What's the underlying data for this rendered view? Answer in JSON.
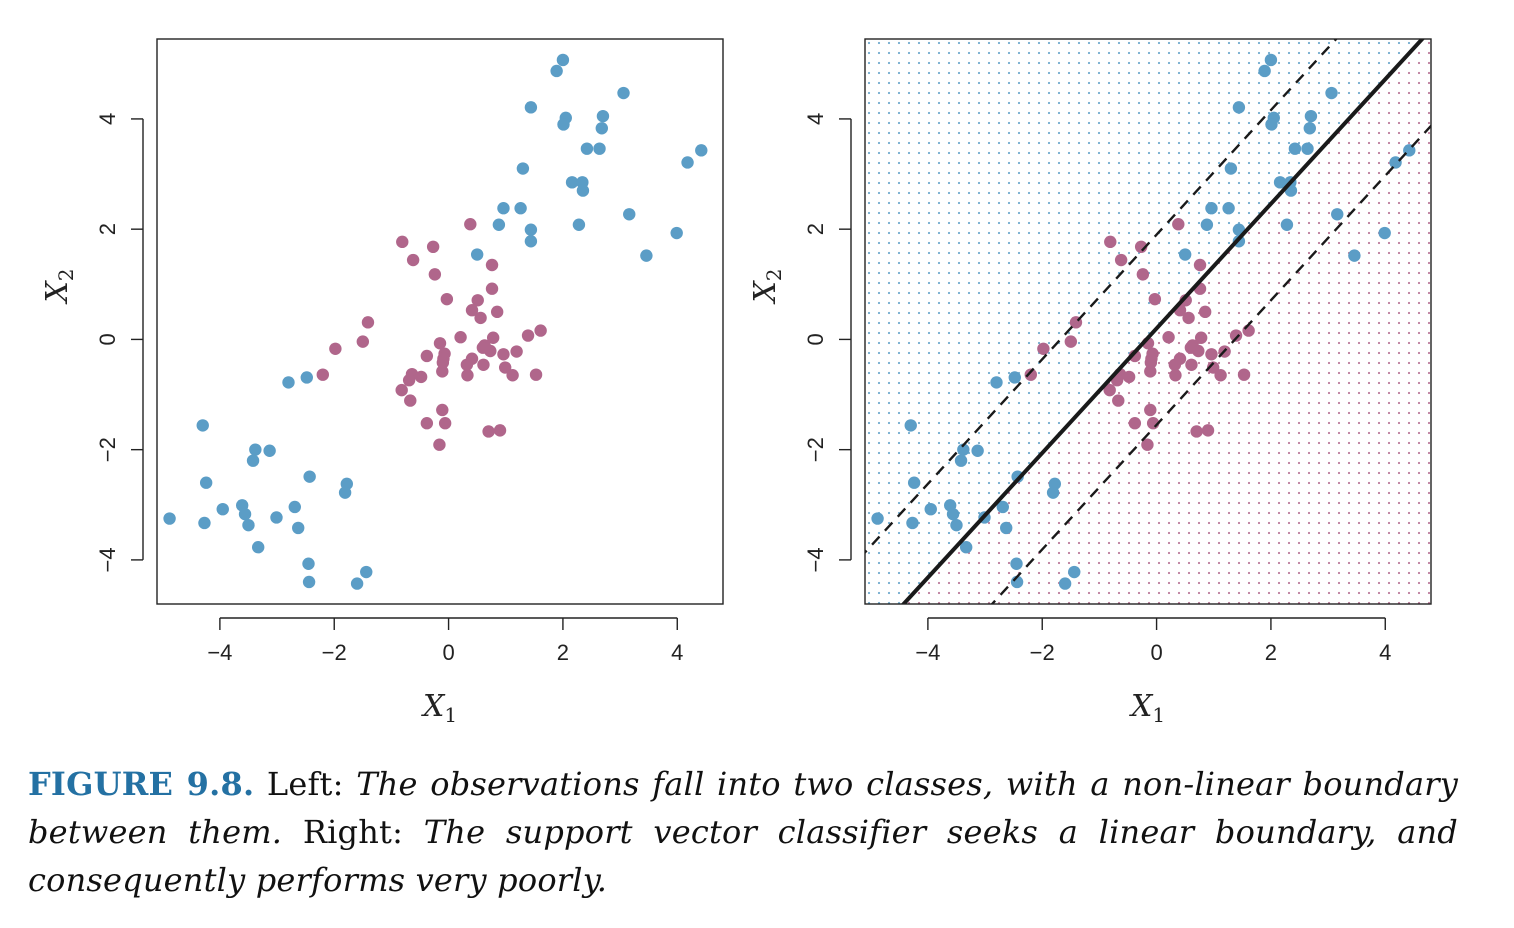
{
  "figure": {
    "colors": {
      "class_blue": "#5b9dc6",
      "class_purple": "#b0668b",
      "axis": "#222222",
      "boundary": "#1a1a1a"
    }
  },
  "chart_data": [
    {
      "type": "scatter",
      "panel": "left",
      "xlabel_main": "X",
      "xlabel_sub": "1",
      "ylabel_main": "X",
      "ylabel_sub": "2",
      "xlim": [
        -5.1,
        4.8
      ],
      "ylim": [
        -4.8,
        5.45
      ],
      "x_ticks": [
        -4,
        -2,
        0,
        2,
        4
      ],
      "x_tick_labels": [
        "−4",
        "−2",
        "0",
        "2",
        "4"
      ],
      "y_ticks": [
        -4,
        -2,
        0,
        2,
        4
      ],
      "y_tick_labels": [
        "−4",
        "−2",
        "0",
        "2",
        "4"
      ],
      "series": [
        {
          "class": "blue",
          "color": "#5b9dc6",
          "points": [
            [
              1.89,
              4.87
            ],
            [
              2.0,
              5.07
            ],
            [
              3.06,
              4.47
            ],
            [
              1.44,
              4.21
            ],
            [
              2.05,
              4.02
            ],
            [
              2.01,
              3.9
            ],
            [
              2.7,
              4.05
            ],
            [
              2.68,
              3.83
            ],
            [
              2.42,
              3.46
            ],
            [
              2.64,
              3.46
            ],
            [
              4.42,
              3.43
            ],
            [
              1.3,
              3.1
            ],
            [
              4.18,
              3.21
            ],
            [
              2.16,
              2.85
            ],
            [
              2.34,
              2.85
            ],
            [
              2.35,
              2.7
            ],
            [
              0.96,
              2.38
            ],
            [
              1.26,
              2.38
            ],
            [
              3.16,
              2.27
            ],
            [
              2.28,
              2.08
            ],
            [
              0.88,
              2.08
            ],
            [
              1.44,
              1.99
            ],
            [
              1.44,
              1.78
            ],
            [
              3.99,
              1.93
            ],
            [
              0.5,
              1.54
            ],
            [
              3.46,
              1.52
            ],
            [
              -2.48,
              -0.69
            ],
            [
              -2.8,
              -0.78
            ],
            [
              -4.3,
              -1.56
            ],
            [
              -3.38,
              -2.0
            ],
            [
              -3.13,
              -2.02
            ],
            [
              -3.42,
              -2.2
            ],
            [
              -4.24,
              -2.6
            ],
            [
              -2.43,
              -2.49
            ],
            [
              -1.78,
              -2.62
            ],
            [
              -1.81,
              -2.78
            ],
            [
              -4.88,
              -3.25
            ],
            [
              -3.95,
              -3.08
            ],
            [
              -4.27,
              -3.33
            ],
            [
              -3.61,
              -3.01
            ],
            [
              -3.56,
              -3.17
            ],
            [
              -3.01,
              -3.23
            ],
            [
              -2.69,
              -3.04
            ],
            [
              -3.5,
              -3.37
            ],
            [
              -2.63,
              -3.42
            ],
            [
              -3.33,
              -3.77
            ],
            [
              -2.45,
              -4.07
            ],
            [
              -2.44,
              -4.4
            ],
            [
              -1.44,
              -4.22
            ],
            [
              -1.6,
              -4.43
            ]
          ]
        },
        {
          "class": "purple",
          "color": "#b0668b",
          "points": [
            [
              0.38,
              2.09
            ],
            [
              -0.81,
              1.77
            ],
            [
              -0.27,
              1.68
            ],
            [
              -0.62,
              1.44
            ],
            [
              -0.24,
              1.18
            ],
            [
              0.76,
              1.35
            ],
            [
              0.76,
              0.92
            ],
            [
              -0.03,
              0.73
            ],
            [
              0.51,
              0.71
            ],
            [
              0.41,
              0.53
            ],
            [
              0.85,
              0.5
            ],
            [
              0.56,
              0.39
            ],
            [
              -1.41,
              0.31
            ],
            [
              1.61,
              0.16
            ],
            [
              1.39,
              0.07
            ],
            [
              0.21,
              0.04
            ],
            [
              0.78,
              0.03
            ],
            [
              -1.5,
              -0.04
            ],
            [
              -0.15,
              -0.07
            ],
            [
              0.63,
              -0.11
            ],
            [
              -1.98,
              -0.17
            ],
            [
              -0.07,
              -0.26
            ],
            [
              0.6,
              -0.15
            ],
            [
              1.19,
              -0.22
            ],
            [
              0.73,
              -0.21
            ],
            [
              -0.38,
              -0.3
            ],
            [
              -0.09,
              -0.35
            ],
            [
              0.96,
              -0.27
            ],
            [
              -0.1,
              -0.42
            ],
            [
              0.41,
              -0.35
            ],
            [
              0.32,
              -0.46
            ],
            [
              0.61,
              -0.46
            ],
            [
              -0.11,
              -0.58
            ],
            [
              0.99,
              -0.51
            ],
            [
              -2.2,
              -0.64
            ],
            [
              -0.64,
              -0.63
            ],
            [
              -0.48,
              -0.68
            ],
            [
              0.33,
              -0.65
            ],
            [
              1.12,
              -0.65
            ],
            [
              -0.69,
              -0.74
            ],
            [
              1.53,
              -0.64
            ],
            [
              -0.82,
              -0.92
            ],
            [
              -0.67,
              -1.11
            ],
            [
              -0.11,
              -1.28
            ],
            [
              -0.38,
              -1.52
            ],
            [
              -0.06,
              -1.52
            ],
            [
              0.9,
              -1.65
            ],
            [
              0.7,
              -1.67
            ],
            [
              -0.16,
              -1.91
            ]
          ]
        }
      ]
    },
    {
      "type": "scatter",
      "panel": "right",
      "xlabel_main": "X",
      "xlabel_sub": "1",
      "ylabel_main": "X",
      "ylabel_sub": "2",
      "xlim": [
        -5.1,
        4.8
      ],
      "ylim": [
        -4.8,
        5.45
      ],
      "x_ticks": [
        -4,
        -2,
        0,
        2,
        4
      ],
      "x_tick_labels": [
        "−4",
        "−2",
        "0",
        "2",
        "4"
      ],
      "y_ticks": [
        -4,
        -2,
        0,
        2,
        4
      ],
      "y_tick_labels": [
        "−4",
        "−2",
        "0",
        "2",
        "4"
      ],
      "background_grid": "dotted class-colored prediction grid",
      "decision_boundary": {
        "slope": 1.13,
        "intercept": 0.2
      },
      "margins": [
        {
          "slope": 1.13,
          "intercept": 1.9
        },
        {
          "slope": 1.13,
          "intercept": -1.55
        }
      ],
      "series": [
        {
          "class": "blue",
          "color": "#5b9dc6",
          "points": [
            [
              1.89,
              4.87
            ],
            [
              2.0,
              5.07
            ],
            [
              3.06,
              4.47
            ],
            [
              1.44,
              4.21
            ],
            [
              2.05,
              4.02
            ],
            [
              2.01,
              3.9
            ],
            [
              2.7,
              4.05
            ],
            [
              2.68,
              3.83
            ],
            [
              2.42,
              3.46
            ],
            [
              2.64,
              3.46
            ],
            [
              4.42,
              3.43
            ],
            [
              1.3,
              3.1
            ],
            [
              4.18,
              3.21
            ],
            [
              2.16,
              2.85
            ],
            [
              2.34,
              2.85
            ],
            [
              2.35,
              2.7
            ],
            [
              0.96,
              2.38
            ],
            [
              1.26,
              2.38
            ],
            [
              3.16,
              2.27
            ],
            [
              2.28,
              2.08
            ],
            [
              0.88,
              2.08
            ],
            [
              1.44,
              1.99
            ],
            [
              1.44,
              1.78
            ],
            [
              3.99,
              1.93
            ],
            [
              0.5,
              1.54
            ],
            [
              3.46,
              1.52
            ],
            [
              -2.48,
              -0.69
            ],
            [
              -2.8,
              -0.78
            ],
            [
              -4.3,
              -1.56
            ],
            [
              -3.38,
              -2.0
            ],
            [
              -3.13,
              -2.02
            ],
            [
              -3.42,
              -2.2
            ],
            [
              -4.24,
              -2.6
            ],
            [
              -2.43,
              -2.49
            ],
            [
              -1.78,
              -2.62
            ],
            [
              -1.81,
              -2.78
            ],
            [
              -4.88,
              -3.25
            ],
            [
              -3.95,
              -3.08
            ],
            [
              -4.27,
              -3.33
            ],
            [
              -3.61,
              -3.01
            ],
            [
              -3.56,
              -3.17
            ],
            [
              -3.01,
              -3.23
            ],
            [
              -2.69,
              -3.04
            ],
            [
              -3.5,
              -3.37
            ],
            [
              -2.63,
              -3.42
            ],
            [
              -3.33,
              -3.77
            ],
            [
              -2.45,
              -4.07
            ],
            [
              -2.44,
              -4.4
            ],
            [
              -1.44,
              -4.22
            ],
            [
              -1.6,
              -4.43
            ]
          ]
        },
        {
          "class": "purple",
          "color": "#b0668b",
          "points": [
            [
              0.38,
              2.09
            ],
            [
              -0.81,
              1.77
            ],
            [
              -0.27,
              1.68
            ],
            [
              -0.62,
              1.44
            ],
            [
              -0.24,
              1.18
            ],
            [
              0.76,
              1.35
            ],
            [
              0.76,
              0.92
            ],
            [
              -0.03,
              0.73
            ],
            [
              0.51,
              0.71
            ],
            [
              0.41,
              0.53
            ],
            [
              0.85,
              0.5
            ],
            [
              0.56,
              0.39
            ],
            [
              -1.41,
              0.31
            ],
            [
              1.61,
              0.16
            ],
            [
              1.39,
              0.07
            ],
            [
              0.21,
              0.04
            ],
            [
              0.78,
              0.03
            ],
            [
              -1.5,
              -0.04
            ],
            [
              -0.15,
              -0.07
            ],
            [
              0.63,
              -0.11
            ],
            [
              -1.98,
              -0.17
            ],
            [
              -0.07,
              -0.26
            ],
            [
              0.6,
              -0.15
            ],
            [
              1.19,
              -0.22
            ],
            [
              0.73,
              -0.21
            ],
            [
              -0.38,
              -0.3
            ],
            [
              -0.09,
              -0.35
            ],
            [
              0.96,
              -0.27
            ],
            [
              -0.1,
              -0.42
            ],
            [
              0.41,
              -0.35
            ],
            [
              0.32,
              -0.46
            ],
            [
              0.61,
              -0.46
            ],
            [
              -0.11,
              -0.58
            ],
            [
              0.99,
              -0.51
            ],
            [
              -2.2,
              -0.64
            ],
            [
              -0.64,
              -0.63
            ],
            [
              -0.48,
              -0.68
            ],
            [
              0.33,
              -0.65
            ],
            [
              1.12,
              -0.65
            ],
            [
              -0.69,
              -0.74
            ],
            [
              1.53,
              -0.64
            ],
            [
              -0.82,
              -0.92
            ],
            [
              -0.67,
              -1.11
            ],
            [
              -0.11,
              -1.28
            ],
            [
              -0.38,
              -1.52
            ],
            [
              -0.06,
              -1.52
            ],
            [
              0.9,
              -1.65
            ],
            [
              0.7,
              -1.67
            ],
            [
              -0.16,
              -1.91
            ]
          ]
        }
      ]
    }
  ],
  "caption": {
    "label": "FIGURE 9.8.",
    "left_word": "Left:",
    "left_text": "The observations fall into two classes, with a non-linear boundary between them.",
    "right_word": "Right:",
    "right_text": "The support vector classifier seeks a linear boundary, and consequently performs very poorly."
  }
}
